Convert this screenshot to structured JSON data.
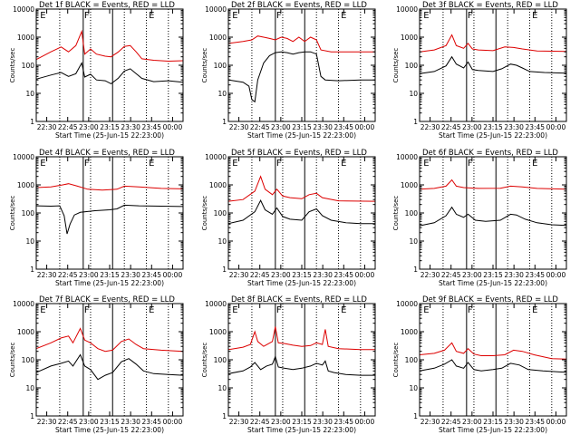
{
  "chart_data": {
    "type": "line",
    "x_tick_labels": [
      "22:30",
      "22:45",
      "23:00",
      "23:15",
      "23:30",
      "23:45",
      "00:00"
    ],
    "y_tick_labels": [
      "1",
      "10",
      "100",
      "1000",
      "10000"
    ],
    "xlabel": "Start Time (25-Jun-15 22:23:00)",
    "ylabel": "Counts/sec",
    "yscale": "log",
    "ylim": [
      1,
      10000
    ],
    "x_range_minutes_from_22_23": [
      0,
      100
    ],
    "vertical_lines_solid_minutes": [
      32,
      52
    ],
    "vertical_lines_dotted_minutes": [
      16,
      37,
      60,
      75,
      90
    ],
    "markers": [
      {
        "label": "E",
        "minute": 2
      },
      {
        "label": "F",
        "minute": 32
      },
      {
        "label": "E",
        "minute": 76
      }
    ],
    "series_colors": {
      "events": "#000000",
      "lld": "#dd0000"
    },
    "panels": [
      {
        "title": "Det 1f BLACK = Events, RED = LLD",
        "events": [
          [
            0,
            32
          ],
          [
            10,
            45
          ],
          [
            17,
            55
          ],
          [
            22,
            40
          ],
          [
            27,
            50
          ],
          [
            31,
            120
          ],
          [
            33,
            38
          ],
          [
            37,
            48
          ],
          [
            41,
            30
          ],
          [
            47,
            28
          ],
          [
            51,
            22
          ],
          [
            56,
            35
          ],
          [
            60,
            62
          ],
          [
            64,
            75
          ],
          [
            68,
            50
          ],
          [
            72,
            34
          ],
          [
            80,
            26
          ],
          [
            90,
            28
          ],
          [
            100,
            25
          ]
        ],
        "lld": [
          [
            0,
            160
          ],
          [
            10,
            300
          ],
          [
            17,
            450
          ],
          [
            22,
            300
          ],
          [
            27,
            500
          ],
          [
            31,
            1600
          ],
          [
            33,
            250
          ],
          [
            37,
            380
          ],
          [
            41,
            250
          ],
          [
            47,
            210
          ],
          [
            51,
            200
          ],
          [
            56,
            300
          ],
          [
            60,
            470
          ],
          [
            64,
            500
          ],
          [
            68,
            300
          ],
          [
            72,
            170
          ],
          [
            80,
            150
          ],
          [
            90,
            140
          ],
          [
            100,
            145
          ]
        ]
      },
      {
        "title": "Det 2f BLACK = Events, RED = LLD",
        "events": [
          [
            0,
            30
          ],
          [
            10,
            25
          ],
          [
            14,
            18
          ],
          [
            16,
            6
          ],
          [
            18,
            5
          ],
          [
            20,
            30
          ],
          [
            24,
            120
          ],
          [
            28,
            220
          ],
          [
            32,
            280
          ],
          [
            36,
            300
          ],
          [
            40,
            280
          ],
          [
            44,
            250
          ],
          [
            48,
            280
          ],
          [
            52,
            300
          ],
          [
            56,
            300
          ],
          [
            60,
            250
          ],
          [
            63,
            40
          ],
          [
            66,
            30
          ],
          [
            75,
            28
          ],
          [
            90,
            30
          ],
          [
            100,
            30
          ]
        ],
        "lld": [
          [
            0,
            600
          ],
          [
            10,
            700
          ],
          [
            16,
            800
          ],
          [
            20,
            1100
          ],
          [
            24,
            1000
          ],
          [
            28,
            900
          ],
          [
            32,
            800
          ],
          [
            36,
            1000
          ],
          [
            40,
            900
          ],
          [
            44,
            700
          ],
          [
            48,
            1000
          ],
          [
            52,
            700
          ],
          [
            56,
            1000
          ],
          [
            60,
            800
          ],
          [
            63,
            350
          ],
          [
            70,
            300
          ],
          [
            80,
            300
          ],
          [
            100,
            300
          ]
        ]
      },
      {
        "title": "Det 3f BLACK = Events, RED = LLD",
        "events": [
          [
            0,
            50
          ],
          [
            10,
            60
          ],
          [
            18,
            95
          ],
          [
            22,
            200
          ],
          [
            25,
            110
          ],
          [
            30,
            80
          ],
          [
            33,
            130
          ],
          [
            36,
            70
          ],
          [
            40,
            65
          ],
          [
            50,
            60
          ],
          [
            56,
            75
          ],
          [
            62,
            110
          ],
          [
            66,
            100
          ],
          [
            70,
            80
          ],
          [
            75,
            60
          ],
          [
            85,
            55
          ],
          [
            100,
            52
          ]
        ],
        "lld": [
          [
            0,
            300
          ],
          [
            10,
            350
          ],
          [
            18,
            500
          ],
          [
            22,
            1200
          ],
          [
            25,
            500
          ],
          [
            30,
            400
          ],
          [
            33,
            600
          ],
          [
            36,
            380
          ],
          [
            40,
            350
          ],
          [
            50,
            330
          ],
          [
            58,
            450
          ],
          [
            64,
            430
          ],
          [
            70,
            380
          ],
          [
            80,
            320
          ],
          [
            100,
            310
          ]
        ]
      },
      {
        "title": "Det 4f BLACK = Events, RED = LLD",
        "events": [
          [
            0,
            180
          ],
          [
            10,
            175
          ],
          [
            16,
            180
          ],
          [
            19,
            80
          ],
          [
            21,
            18
          ],
          [
            23,
            40
          ],
          [
            26,
            85
          ],
          [
            30,
            105
          ],
          [
            40,
            120
          ],
          [
            50,
            130
          ],
          [
            55,
            140
          ],
          [
            60,
            190
          ],
          [
            70,
            180
          ],
          [
            85,
            175
          ],
          [
            100,
            170
          ]
        ],
        "lld": [
          [
            0,
            800
          ],
          [
            10,
            850
          ],
          [
            18,
            1000
          ],
          [
            22,
            1100
          ],
          [
            28,
            900
          ],
          [
            35,
            700
          ],
          [
            45,
            650
          ],
          [
            55,
            700
          ],
          [
            60,
            900
          ],
          [
            70,
            850
          ],
          [
            85,
            750
          ],
          [
            100,
            720
          ]
        ]
      },
      {
        "title": "Det 5f BLACK = Events, RED = LLD",
        "events": [
          [
            0,
            42
          ],
          [
            10,
            55
          ],
          [
            18,
            110
          ],
          [
            22,
            280
          ],
          [
            25,
            130
          ],
          [
            30,
            90
          ],
          [
            33,
            150
          ],
          [
            37,
            75
          ],
          [
            42,
            60
          ],
          [
            50,
            55
          ],
          [
            55,
            110
          ],
          [
            60,
            140
          ],
          [
            64,
            80
          ],
          [
            70,
            55
          ],
          [
            80,
            45
          ],
          [
            90,
            42
          ],
          [
            100,
            42
          ]
        ],
        "lld": [
          [
            0,
            260
          ],
          [
            10,
            300
          ],
          [
            18,
            600
          ],
          [
            22,
            2000
          ],
          [
            25,
            700
          ],
          [
            30,
            450
          ],
          [
            33,
            700
          ],
          [
            37,
            400
          ],
          [
            42,
            350
          ],
          [
            50,
            320
          ],
          [
            55,
            450
          ],
          [
            60,
            500
          ],
          [
            64,
            350
          ],
          [
            75,
            270
          ],
          [
            100,
            260
          ]
        ]
      },
      {
        "title": "Det 6f BLACK = Events, RED = LLD",
        "events": [
          [
            0,
            35
          ],
          [
            10,
            45
          ],
          [
            18,
            80
          ],
          [
            22,
            160
          ],
          [
            25,
            90
          ],
          [
            30,
            70
          ],
          [
            33,
            90
          ],
          [
            38,
            55
          ],
          [
            45,
            50
          ],
          [
            55,
            55
          ],
          [
            62,
            90
          ],
          [
            66,
            85
          ],
          [
            72,
            60
          ],
          [
            80,
            45
          ],
          [
            90,
            38
          ],
          [
            100,
            36
          ]
        ],
        "lld": [
          [
            0,
            700
          ],
          [
            10,
            750
          ],
          [
            18,
            900
          ],
          [
            22,
            1500
          ],
          [
            25,
            900
          ],
          [
            30,
            800
          ],
          [
            40,
            750
          ],
          [
            55,
            760
          ],
          [
            62,
            900
          ],
          [
            70,
            850
          ],
          [
            80,
            750
          ],
          [
            100,
            700
          ]
        ]
      },
      {
        "title": "Det 7f BLACK = Events, RED = LLD",
        "events": [
          [
            0,
            35
          ],
          [
            10,
            60
          ],
          [
            17,
            75
          ],
          [
            22,
            90
          ],
          [
            25,
            60
          ],
          [
            30,
            150
          ],
          [
            33,
            60
          ],
          [
            37,
            45
          ],
          [
            42,
            20
          ],
          [
            47,
            28
          ],
          [
            52,
            35
          ],
          [
            58,
            85
          ],
          [
            63,
            110
          ],
          [
            68,
            70
          ],
          [
            73,
            40
          ],
          [
            80,
            32
          ],
          [
            90,
            30
          ],
          [
            100,
            28
          ]
        ],
        "lld": [
          [
            0,
            250
          ],
          [
            10,
            400
          ],
          [
            17,
            600
          ],
          [
            22,
            700
          ],
          [
            25,
            400
          ],
          [
            30,
            1300
          ],
          [
            33,
            500
          ],
          [
            37,
            400
          ],
          [
            42,
            250
          ],
          [
            47,
            200
          ],
          [
            52,
            220
          ],
          [
            58,
            450
          ],
          [
            63,
            550
          ],
          [
            68,
            350
          ],
          [
            73,
            250
          ],
          [
            85,
            220
          ],
          [
            100,
            200
          ]
        ]
      },
      {
        "title": "Det 8f BLACK = Events, RED = LLD",
        "events": [
          [
            0,
            32
          ],
          [
            10,
            40
          ],
          [
            15,
            55
          ],
          [
            18,
            80
          ],
          [
            20,
            60
          ],
          [
            22,
            45
          ],
          [
            26,
            60
          ],
          [
            30,
            70
          ],
          [
            32,
            130
          ],
          [
            34,
            55
          ],
          [
            38,
            50
          ],
          [
            44,
            45
          ],
          [
            50,
            50
          ],
          [
            56,
            60
          ],
          [
            60,
            75
          ],
          [
            64,
            65
          ],
          [
            66,
            90
          ],
          [
            68,
            40
          ],
          [
            72,
            35
          ],
          [
            80,
            30
          ],
          [
            90,
            28
          ],
          [
            100,
            28
          ]
        ],
        "lld": [
          [
            0,
            230
          ],
          [
            10,
            280
          ],
          [
            15,
            350
          ],
          [
            18,
            1000
          ],
          [
            20,
            450
          ],
          [
            24,
            300
          ],
          [
            30,
            450
          ],
          [
            32,
            1500
          ],
          [
            34,
            400
          ],
          [
            38,
            380
          ],
          [
            44,
            330
          ],
          [
            50,
            300
          ],
          [
            56,
            320
          ],
          [
            60,
            400
          ],
          [
            64,
            350
          ],
          [
            66,
            1200
          ],
          [
            68,
            300
          ],
          [
            75,
            250
          ],
          [
            90,
            230
          ],
          [
            100,
            230
          ]
        ]
      },
      {
        "title": "Det 9f BLACK = Events, RED = LLD",
        "events": [
          [
            0,
            40
          ],
          [
            10,
            50
          ],
          [
            17,
            70
          ],
          [
            22,
            100
          ],
          [
            25,
            60
          ],
          [
            30,
            50
          ],
          [
            33,
            80
          ],
          [
            37,
            45
          ],
          [
            42,
            40
          ],
          [
            50,
            45
          ],
          [
            56,
            50
          ],
          [
            62,
            75
          ],
          [
            68,
            65
          ],
          [
            74,
            45
          ],
          [
            84,
            40
          ],
          [
            95,
            37
          ],
          [
            100,
            36
          ]
        ],
        "lld": [
          [
            0,
            150
          ],
          [
            10,
            170
          ],
          [
            17,
            220
          ],
          [
            22,
            400
          ],
          [
            25,
            200
          ],
          [
            30,
            170
          ],
          [
            33,
            250
          ],
          [
            37,
            160
          ],
          [
            42,
            140
          ],
          [
            50,
            140
          ],
          [
            58,
            150
          ],
          [
            64,
            220
          ],
          [
            70,
            200
          ],
          [
            78,
            150
          ],
          [
            90,
            110
          ],
          [
            100,
            105
          ]
        ]
      }
    ]
  }
}
